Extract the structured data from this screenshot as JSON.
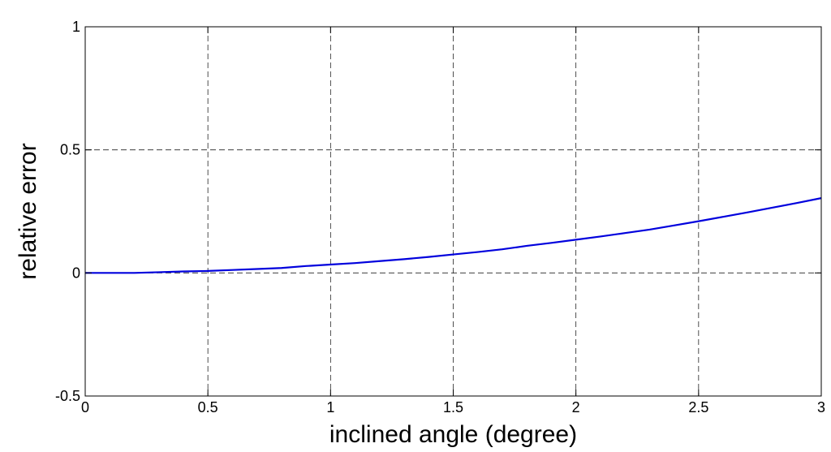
{
  "chart_data": {
    "type": "line",
    "title": "",
    "xlabel": "inclined angle (degree)",
    "ylabel": "relative error",
    "xlim": [
      0,
      3
    ],
    "ylim": [
      -0.5,
      1
    ],
    "xticks": [
      0,
      0.5,
      1,
      1.5,
      2,
      2.5,
      3
    ],
    "xtick_labels": [
      "0",
      "0.5",
      "1",
      "1.5",
      "2",
      "2.5",
      "3"
    ],
    "yticks": [
      -0.5,
      0,
      0.5,
      1
    ],
    "ytick_labels": [
      "-0.5",
      "0",
      "0.5",
      "1"
    ],
    "grid": true,
    "series": [
      {
        "color": "#0000dd",
        "x": [
          0,
          0.1,
          0.2,
          0.3,
          0.4,
          0.5,
          0.6,
          0.7,
          0.8,
          0.9,
          1.0,
          1.1,
          1.2,
          1.3,
          1.4,
          1.5,
          1.6,
          1.7,
          1.8,
          1.9,
          2.0,
          2.1,
          2.2,
          2.3,
          2.4,
          2.5,
          2.6,
          2.7,
          2.8,
          2.9,
          3.0
        ],
        "y": [
          0,
          0,
          0,
          0.003,
          0.006,
          0.008,
          0.012,
          0.016,
          0.02,
          0.028,
          0.034,
          0.04,
          0.048,
          0.056,
          0.065,
          0.075,
          0.085,
          0.096,
          0.11,
          0.122,
          0.135,
          0.148,
          0.162,
          0.176,
          0.193,
          0.21,
          0.228,
          0.246,
          0.265,
          0.284,
          0.304
        ]
      }
    ]
  }
}
